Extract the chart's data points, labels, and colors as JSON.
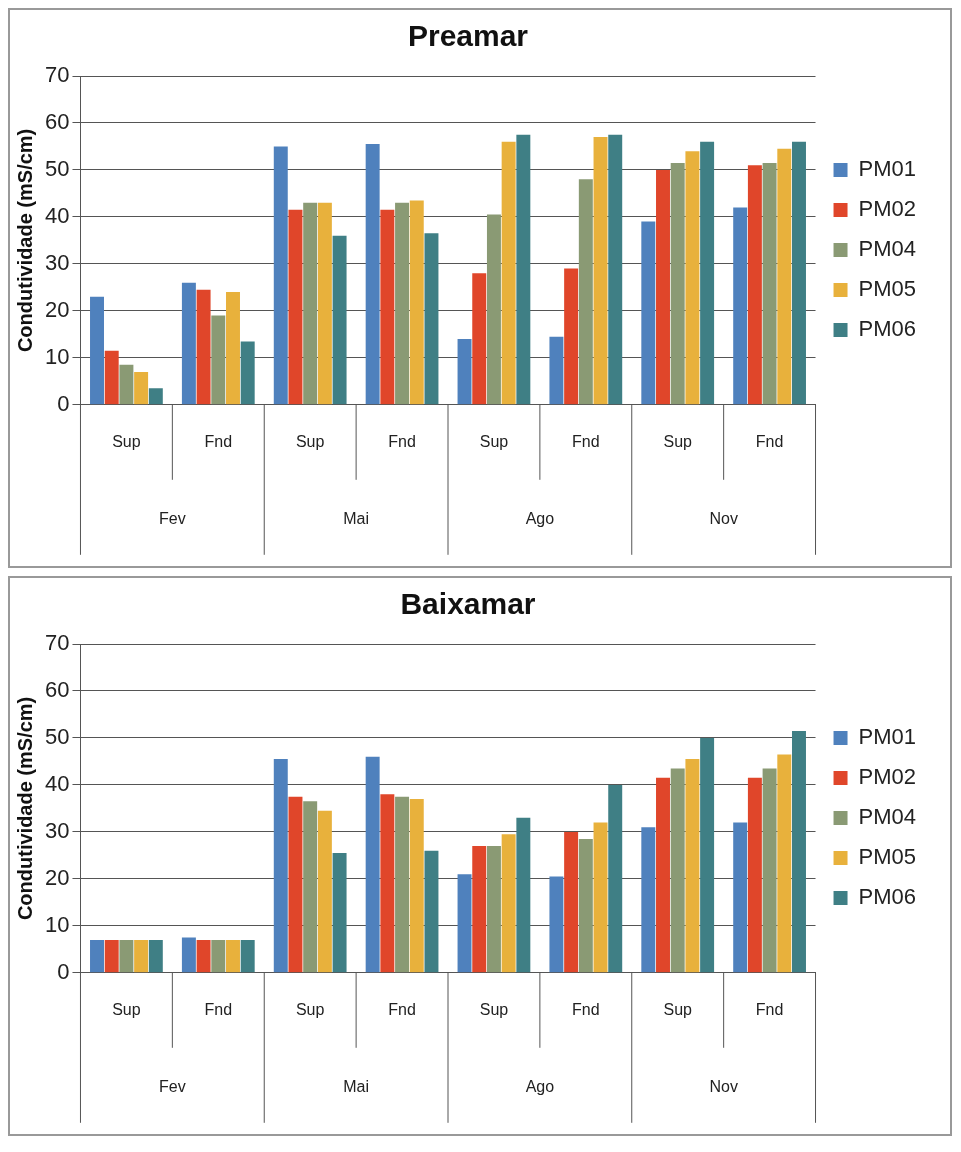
{
  "chart_data": [
    {
      "type": "bar",
      "title": "Preamar",
      "ylabel": "Condutividade (mS/cm)",
      "categories": [
        "Sup",
        "Fnd",
        "Sup",
        "Fnd",
        "Sup",
        "Fnd",
        "Sup",
        "Fnd"
      ],
      "annotations": [
        "Fev",
        "Mai",
        "Ago",
        "Nov"
      ],
      "ylim": [
        0,
        70
      ],
      "yticks": [
        0,
        10,
        20,
        30,
        40,
        50,
        60,
        70
      ],
      "grid": "y",
      "legend": "right",
      "series": [
        {
          "name": "PM01",
          "color": "#4f81bd",
          "values": [
            23,
            26,
            55,
            55.5,
            14,
            14.5,
            39,
            42
          ]
        },
        {
          "name": "PM02",
          "color": "#e0462a",
          "values": [
            11.5,
            24.5,
            41.5,
            41.5,
            28,
            29,
            50,
            51
          ]
        },
        {
          "name": "PM04",
          "color": "#8a9a74",
          "values": [
            8.5,
            19,
            43,
            43,
            40.5,
            48,
            51.5,
            51.5
          ]
        },
        {
          "name": "PM05",
          "color": "#e8b13c",
          "values": [
            7,
            24,
            43,
            43.5,
            56,
            57,
            54,
            54.5
          ]
        },
        {
          "name": "PM06",
          "color": "#3f7f85",
          "values": [
            3.5,
            13.5,
            36,
            36.5,
            57.5,
            57.5,
            56,
            56
          ]
        }
      ]
    },
    {
      "type": "bar",
      "title": "Baixamar",
      "ylabel": "Condutividade (mS/cm)",
      "categories": [
        "Sup",
        "Fnd",
        "Sup",
        "Fnd",
        "Sup",
        "Fnd",
        "Sup",
        "Fnd"
      ],
      "annotations": [
        "Fev",
        "Mai",
        "Ago",
        "Nov"
      ],
      "ylim": [
        0,
        70
      ],
      "yticks": [
        0,
        10,
        20,
        30,
        40,
        50,
        60,
        70
      ],
      "grid": "y",
      "legend": "right",
      "series": [
        {
          "name": "PM01",
          "color": "#4f81bd",
          "values": [
            7,
            7.5,
            45.5,
            46,
            21,
            20.5,
            31,
            32
          ]
        },
        {
          "name": "PM02",
          "color": "#e0462a",
          "values": [
            7,
            7,
            37.5,
            38,
            27,
            30,
            41.5,
            41.5
          ]
        },
        {
          "name": "PM04",
          "color": "#8a9a74",
          "values": [
            7,
            7,
            36.5,
            37.5,
            27,
            28.5,
            43.5,
            43.5
          ]
        },
        {
          "name": "PM05",
          "color": "#e8b13c",
          "values": [
            7,
            7,
            34.5,
            37,
            29.5,
            32,
            45.5,
            46.5
          ]
        },
        {
          "name": "PM06",
          "color": "#3f7f85",
          "values": [
            7,
            7,
            25.5,
            26,
            33,
            40,
            50,
            51.5
          ]
        }
      ]
    }
  ]
}
